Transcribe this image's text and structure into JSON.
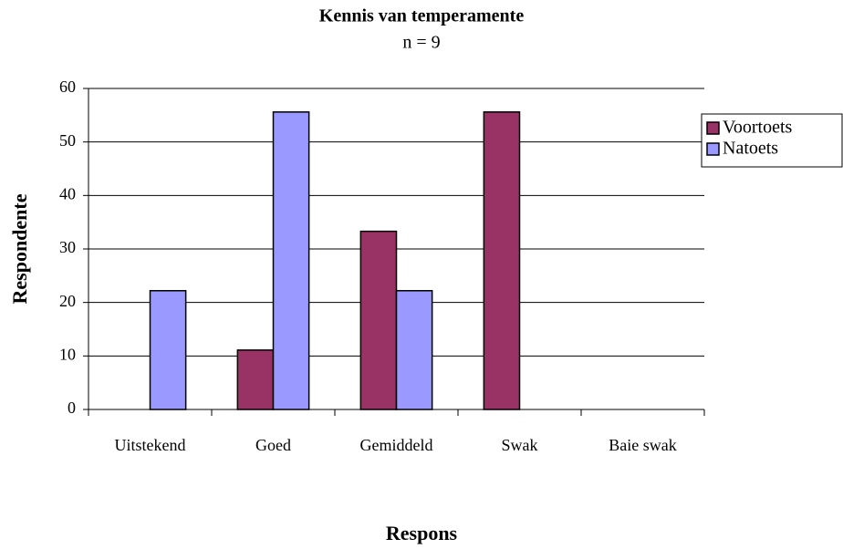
{
  "chart_data": {
    "type": "bar",
    "title": "Kennis van temperamente",
    "subtitle": "n = 9",
    "x_label": "Respons",
    "y_label": "Respondente",
    "categories": [
      "Uitstekend",
      "Goed",
      "Gemiddeld",
      "Swak",
      "Baie swak"
    ],
    "series": [
      {
        "name": "Voortoets",
        "color": "#993366",
        "values": [
          0,
          11.1,
          33.3,
          55.6,
          0
        ]
      },
      {
        "name": "Natoets",
        "color": "#9999ff",
        "values": [
          22.2,
          55.6,
          22.2,
          0,
          0
        ]
      }
    ],
    "ylim": [
      0,
      60
    ],
    "yticks": [
      0,
      10,
      20,
      30,
      40,
      50,
      60
    ],
    "grid": true,
    "legend": "right"
  }
}
